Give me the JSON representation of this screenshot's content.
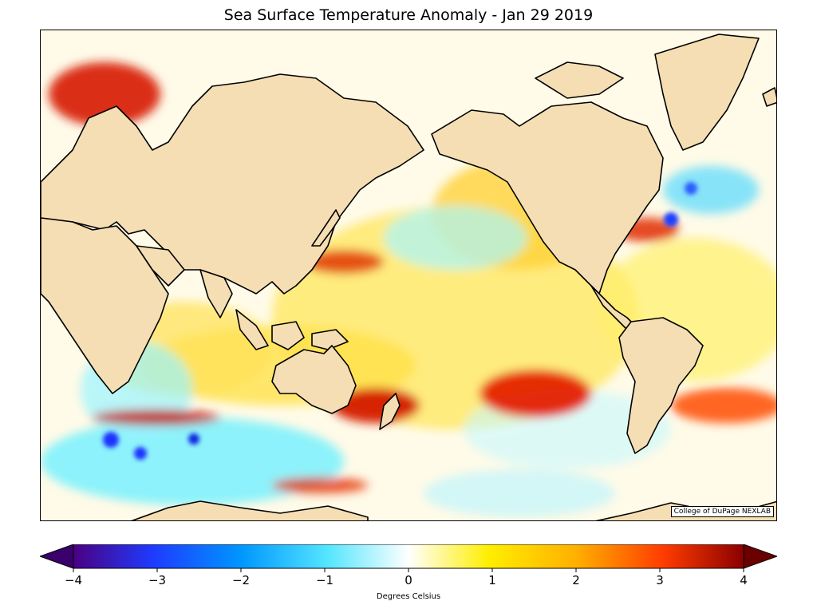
{
  "map": {
    "title": "Sea Surface Temperature Anomaly - Jan 29 2019",
    "credit": "College of DuPage NEXLAB",
    "colors": {
      "land": "#f5deb3",
      "coast": "#000000",
      "ocean_neutral": "#ffffff"
    },
    "colorbar": {
      "min": -4,
      "max": 4,
      "ticks": [
        "−4",
        "−3",
        "−2",
        "−1",
        "0",
        "1",
        "2",
        "3",
        "4"
      ],
      "label": "Degrees Celsius",
      "stops": [
        "#4b0082",
        "#1e3cff",
        "#0096ff",
        "#55e6ff",
        "#ffffff",
        "#ffee00",
        "#ffb000",
        "#ff3c00",
        "#8b0000"
      ]
    }
  }
}
